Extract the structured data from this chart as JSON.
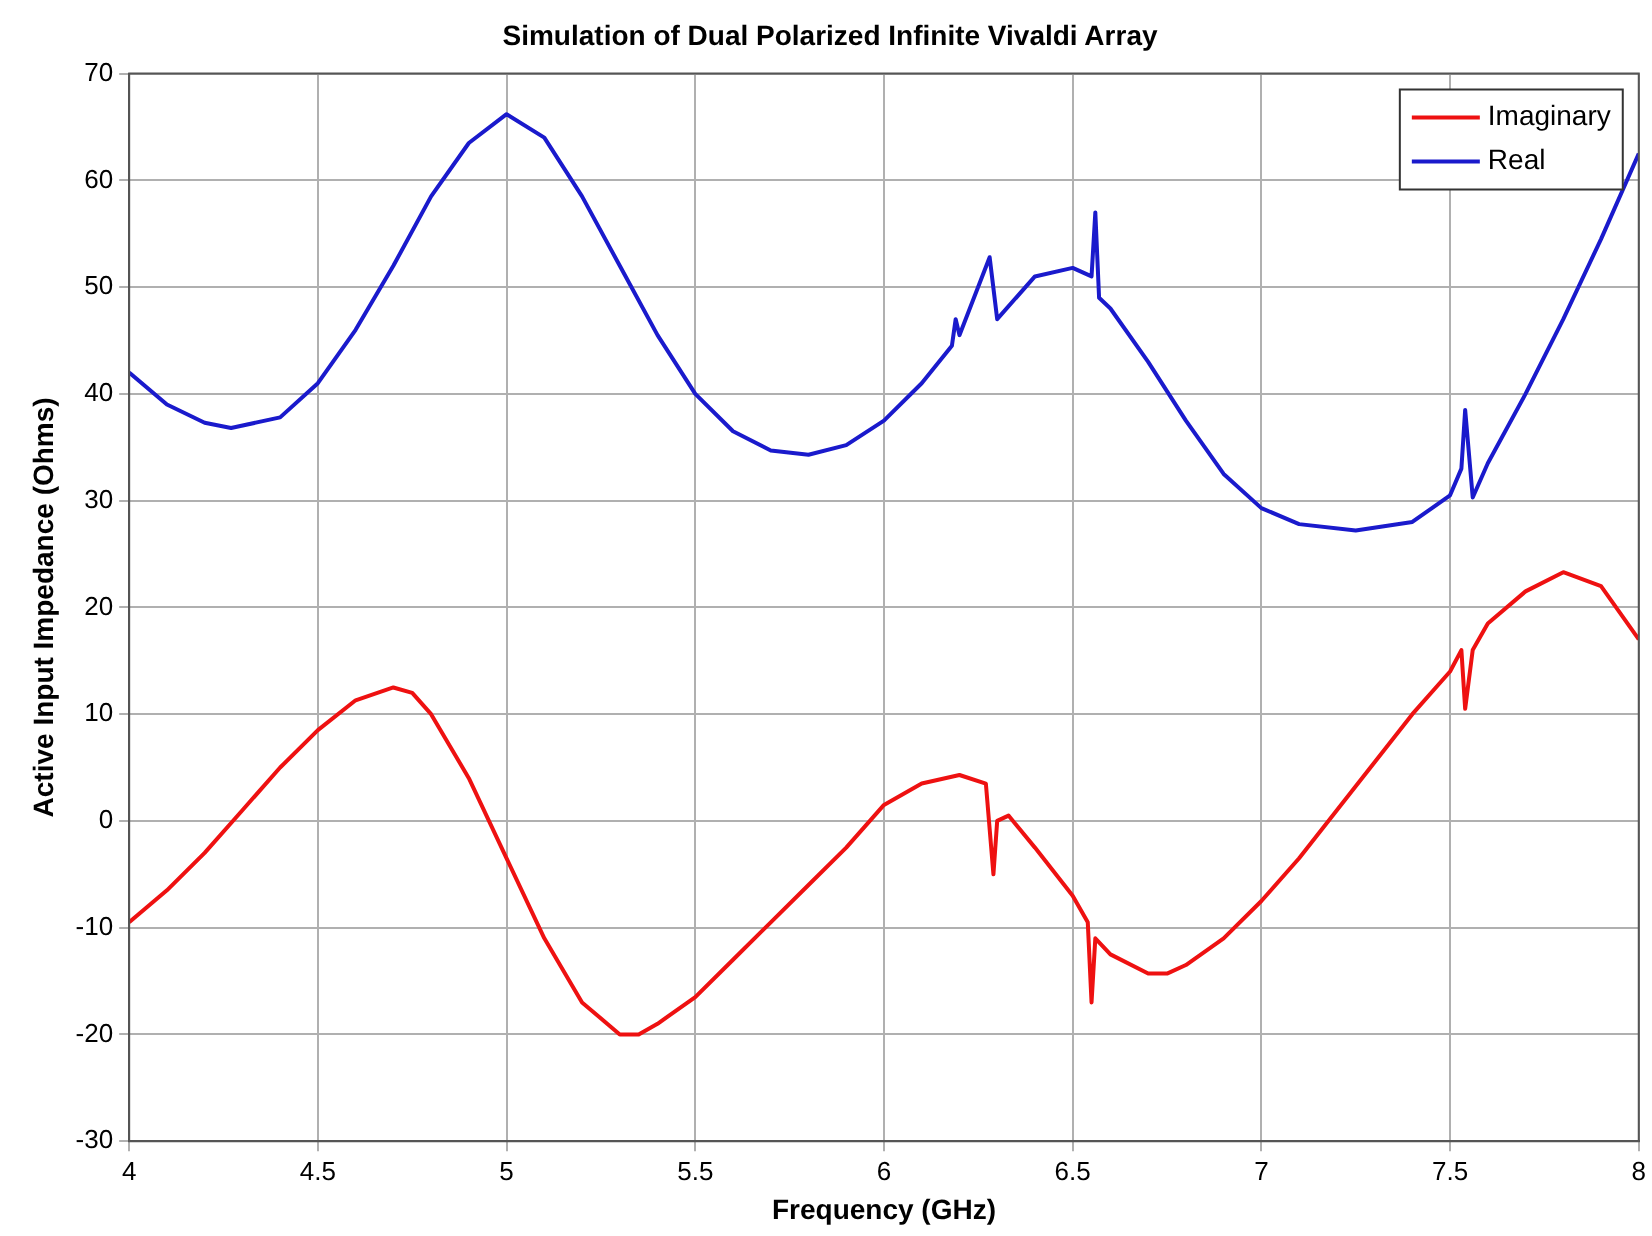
{
  "chart_data": {
    "type": "line",
    "title": "Simulation of Dual Polarized Infinite Vivaldi Array",
    "xlabel": "Frequency (GHz)",
    "ylabel": "Active Input Impedance (Ohms)",
    "xlim": [
      4,
      8
    ],
    "xticks": [
      4,
      4.5,
      5,
      5.5,
      6,
      6.5,
      7,
      7.5,
      8
    ],
    "ylim": [
      -30,
      70
    ],
    "yticks": [
      -30,
      -20,
      -10,
      0,
      10,
      20,
      30,
      40,
      50,
      60,
      70
    ],
    "grid": true,
    "legend": "top right",
    "marker": "none",
    "line_style": "solid",
    "series": [
      {
        "name": "Imaginary",
        "color": "#ee1111",
        "x": [
          4.0,
          4.1,
          4.2,
          4.3,
          4.4,
          4.5,
          4.6,
          4.7,
          4.75,
          4.8,
          4.9,
          5.0,
          5.1,
          5.2,
          5.3,
          5.35,
          5.4,
          5.5,
          5.6,
          5.7,
          5.8,
          5.9,
          6.0,
          6.1,
          6.2,
          6.27,
          6.29,
          6.3,
          6.33,
          6.4,
          6.5,
          6.54,
          6.55,
          6.56,
          6.6,
          6.7,
          6.75,
          6.8,
          6.9,
          7.0,
          7.1,
          7.2,
          7.3,
          7.4,
          7.5,
          7.53,
          7.54,
          7.56,
          7.6,
          7.7,
          7.8,
          7.9,
          8.0
        ],
        "values": [
          -9.5,
          -6.5,
          -3,
          1,
          5,
          8.5,
          11.3,
          12.5,
          12,
          10,
          4,
          -3.5,
          -11,
          -17,
          -20,
          -20,
          -19,
          -16.5,
          -13,
          -9.5,
          -6,
          -2.5,
          1.5,
          3.5,
          4.3,
          3.5,
          -5,
          0,
          0.5,
          -2.5,
          -7,
          -9.5,
          -17,
          -11,
          -12.5,
          -14.3,
          -14.3,
          -13.5,
          -11,
          -7.5,
          -3.5,
          1,
          5.5,
          10,
          14,
          16,
          10.5,
          16,
          18.5,
          21.5,
          23.3,
          22,
          17
        ]
      },
      {
        "name": "Real",
        "color": "#1a1acc",
        "x": [
          4.0,
          4.1,
          4.2,
          4.27,
          4.4,
          4.5,
          4.6,
          4.7,
          4.8,
          4.9,
          5.0,
          5.1,
          5.2,
          5.3,
          5.4,
          5.5,
          5.6,
          5.7,
          5.8,
          5.9,
          6.0,
          6.1,
          6.18,
          6.19,
          6.2,
          6.28,
          6.3,
          6.4,
          6.5,
          6.55,
          6.56,
          6.57,
          6.6,
          6.7,
          6.8,
          6.9,
          7.0,
          7.1,
          7.25,
          7.4,
          7.5,
          7.53,
          7.54,
          7.56,
          7.6,
          7.7,
          7.8,
          7.9,
          8.0
        ],
        "values": [
          42,
          39,
          37.3,
          36.8,
          37.8,
          41,
          46,
          52,
          58.5,
          63.5,
          66.2,
          64,
          58.5,
          52,
          45.5,
          40,
          36.5,
          34.7,
          34.3,
          35.2,
          37.5,
          41,
          44.5,
          47,
          45.5,
          52.8,
          47,
          51,
          51.8,
          51,
          57,
          49,
          48,
          43,
          37.5,
          32.5,
          29.3,
          27.8,
          27.2,
          28,
          30.5,
          33,
          38.5,
          30.3,
          33.5,
          40,
          47,
          54.5,
          62.5
        ]
      }
    ]
  }
}
